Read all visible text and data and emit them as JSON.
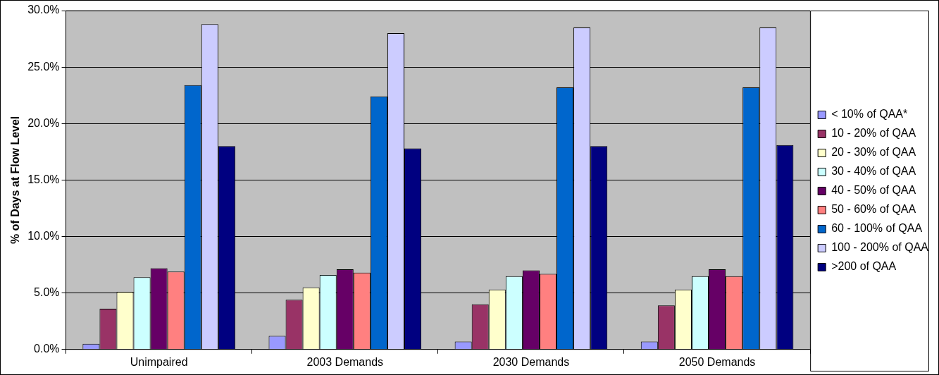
{
  "chart_data": {
    "type": "bar",
    "ylabel": "% of Days at Flow Level",
    "categories": [
      "Unimpaired",
      "2003 Demands",
      "2030 Demands",
      "2050 Demands"
    ],
    "series": [
      {
        "name": "< 10% of QAA*",
        "color": "#9999ff",
        "values": [
          0.5,
          1.2,
          0.7,
          0.7
        ]
      },
      {
        "name": "10 - 20% of QAA",
        "color": "#993366",
        "values": [
          3.6,
          4.4,
          4.0,
          3.9
        ]
      },
      {
        "name": "20 - 30% of QAA",
        "color": "#ffffcc",
        "values": [
          5.1,
          5.5,
          5.3,
          5.3
        ]
      },
      {
        "name": "30 - 40% of QAA",
        "color": "#ccffff",
        "values": [
          6.4,
          6.6,
          6.5,
          6.5
        ]
      },
      {
        "name": "40 - 50% of QAA",
        "color": "#660066",
        "values": [
          7.2,
          7.1,
          7.0,
          7.1
        ]
      },
      {
        "name": "50 - 60% of QAA",
        "color": "#ff8080",
        "values": [
          6.9,
          6.8,
          6.7,
          6.5
        ]
      },
      {
        "name": "60 - 100% of QAA",
        "color": "#0066cc",
        "values": [
          23.4,
          22.4,
          23.2,
          23.2
        ]
      },
      {
        "name": "100 - 200% of QAA",
        "color": "#ccccff",
        "values": [
          28.8,
          28.0,
          28.5,
          28.5
        ]
      },
      {
        "name": ">200 of QAA",
        "color": "#000080",
        "values": [
          18.0,
          17.8,
          18.0,
          18.1
        ]
      }
    ],
    "ylim": [
      0,
      30
    ],
    "yticks": [
      {
        "value": 0,
        "label": "0.0%"
      },
      {
        "value": 5,
        "label": "5.0%"
      },
      {
        "value": 10,
        "label": "10.0%"
      },
      {
        "value": 15,
        "label": "15.0%"
      },
      {
        "value": 20,
        "label": "20.0%"
      },
      {
        "value": 25,
        "label": "25.0%"
      },
      {
        "value": 30,
        "label": "30.0%"
      }
    ],
    "grid": "y",
    "legend": "right"
  }
}
